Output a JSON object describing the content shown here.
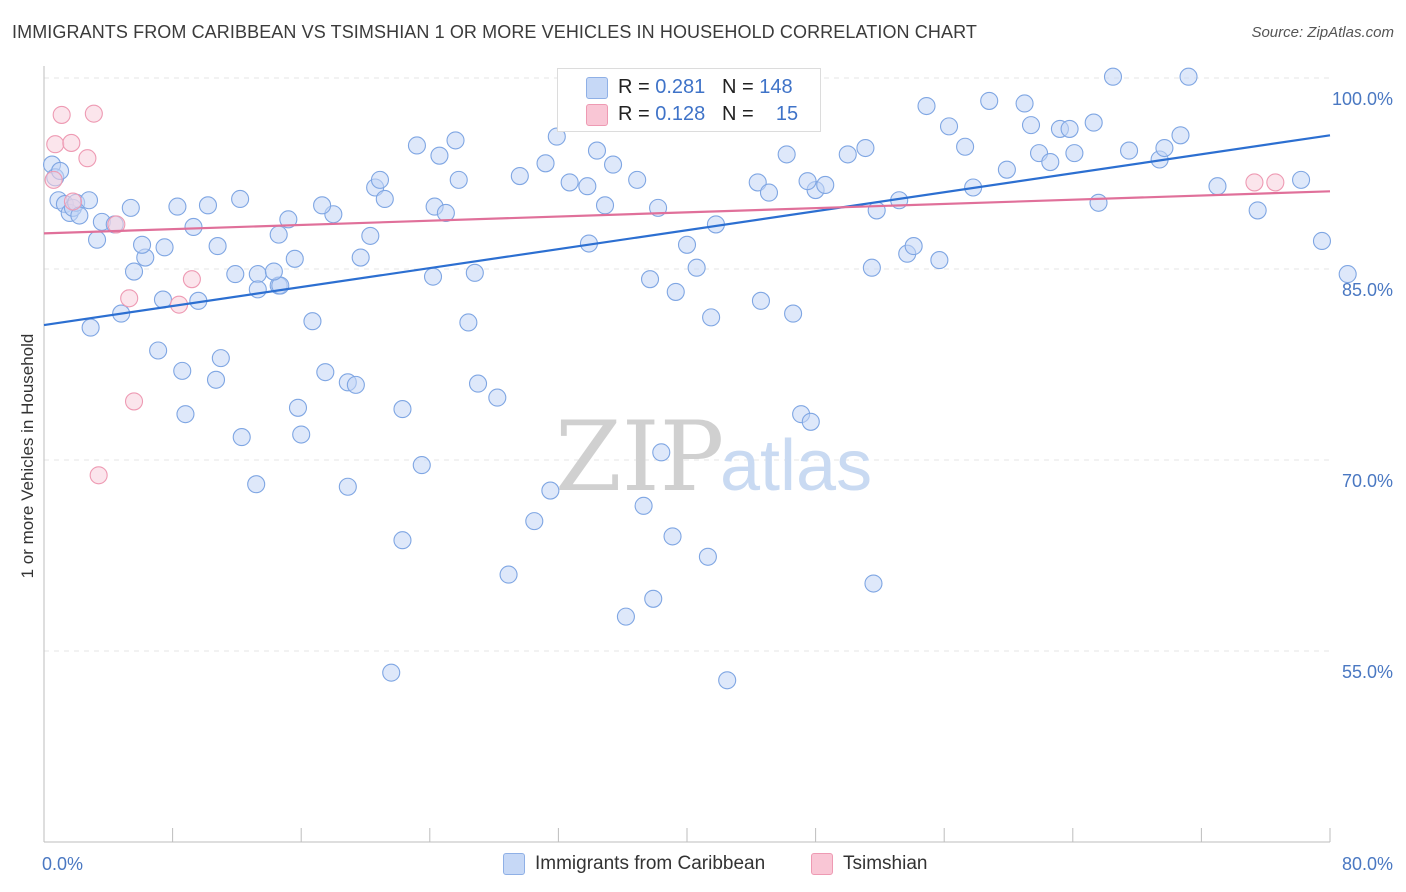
{
  "title": "IMMIGRANTS FROM CARIBBEAN VS TSIMSHIAN 1 OR MORE VEHICLES IN HOUSEHOLD CORRELATION CHART",
  "source": "Source: ZipAtlas.com",
  "watermark": {
    "zip": "ZIP",
    "atlas": "atlas"
  },
  "legend": {
    "r_label": "R =",
    "n_label": "N =",
    "rows": [
      {
        "r": "0.281",
        "n": "148",
        "color": "#a8c4f0"
      },
      {
        "r": "0.128",
        "n": "15",
        "color": "#f6b8cb"
      }
    ]
  },
  "bottom_legend": [
    {
      "label": "Immigrants from Caribbean",
      "color": "#b9d0f3"
    },
    {
      "label": "Tsimshian",
      "color": "#f8c8d6"
    }
  ],
  "chart_data": {
    "type": "scatter",
    "title": "IMMIGRANTS FROM CARIBBEAN VS TSIMSHIAN 1 OR MORE VEHICLES IN HOUSEHOLD CORRELATION CHART",
    "xlabel": "",
    "ylabel": "1 or more Vehicles in Household",
    "xlim": [
      0,
      80
    ],
    "ylim": [
      40,
      102
    ],
    "x_ticks": [
      0,
      80
    ],
    "x_tick_labels": [
      "0.0%",
      "80.0%"
    ],
    "y_ticks": [
      55,
      70,
      85,
      100
    ],
    "y_tick_labels": [
      "55.0%",
      "70.0%",
      "85.0%",
      "100.0%"
    ],
    "grid": true,
    "legend_position": "top-center",
    "series": [
      {
        "name": "Immigrants from Caribbean",
        "color": "#7fa6e3",
        "fill": "#c3d6f5",
        "trend": {
          "x": [
            0,
            80
          ],
          "y": [
            80.6,
            95.5
          ],
          "color": "#2c6fd1"
        },
        "points": [
          [
            0.5,
            93.2
          ],
          [
            0.7,
            92.2
          ],
          [
            0.9,
            90.4
          ],
          [
            1.0,
            92.7
          ],
          [
            1.3,
            90.1
          ],
          [
            1.6,
            89.4
          ],
          [
            1.8,
            89.8
          ],
          [
            2.0,
            90.2
          ],
          [
            2.2,
            89.2
          ],
          [
            2.8,
            90.4
          ],
          [
            3.6,
            88.7
          ],
          [
            5.4,
            89.8
          ],
          [
            8.3,
            89.9
          ],
          [
            10.2,
            90.0
          ],
          [
            12.2,
            90.5
          ],
          [
            2.9,
            80.4
          ],
          [
            4.8,
            81.5
          ],
          [
            5.6,
            84.8
          ],
          [
            6.3,
            85.9
          ],
          [
            7.4,
            82.6
          ],
          [
            3.3,
            87.3
          ],
          [
            4.4,
            88.5
          ],
          [
            6.1,
            86.9
          ],
          [
            7.5,
            86.7
          ],
          [
            9.3,
            88.3
          ],
          [
            10.8,
            86.8
          ],
          [
            11.9,
            84.6
          ],
          [
            13.3,
            84.6
          ],
          [
            14.6,
            87.7
          ],
          [
            15.2,
            88.9
          ],
          [
            9.6,
            82.5
          ],
          [
            11.0,
            78.0
          ],
          [
            10.7,
            76.3
          ],
          [
            8.8,
            73.6
          ],
          [
            7.1,
            78.6
          ],
          [
            8.6,
            77.0
          ],
          [
            12.3,
            71.8
          ],
          [
            13.2,
            68.1
          ],
          [
            14.6,
            83.7
          ],
          [
            14.7,
            83.7
          ],
          [
            13.3,
            83.4
          ],
          [
            14.3,
            84.8
          ],
          [
            15.6,
            85.8
          ],
          [
            16.0,
            72.0
          ],
          [
            16.7,
            80.9
          ],
          [
            15.8,
            74.1
          ],
          [
            17.5,
            76.9
          ],
          [
            18.0,
            89.3
          ],
          [
            18.9,
            67.9
          ],
          [
            17.3,
            90.0
          ],
          [
            18.9,
            76.1
          ],
          [
            19.4,
            75.9
          ],
          [
            19.7,
            85.9
          ],
          [
            20.3,
            87.6
          ],
          [
            20.6,
            91.4
          ],
          [
            20.9,
            92.0
          ],
          [
            21.2,
            90.5
          ],
          [
            22.3,
            63.7
          ],
          [
            21.6,
            53.3
          ],
          [
            22.3,
            74.0
          ],
          [
            23.2,
            94.7
          ],
          [
            23.5,
            69.6
          ],
          [
            24.3,
            89.9
          ],
          [
            24.6,
            93.9
          ],
          [
            24.2,
            84.4
          ],
          [
            25.0,
            89.4
          ],
          [
            25.8,
            92.0
          ],
          [
            25.6,
            95.1
          ],
          [
            26.4,
            80.8
          ],
          [
            26.8,
            84.7
          ],
          [
            27.0,
            76.0
          ],
          [
            28.2,
            74.9
          ],
          [
            28.9,
            61.0
          ],
          [
            29.6,
            92.3
          ],
          [
            30.5,
            65.2
          ],
          [
            31.2,
            93.3
          ],
          [
            31.5,
            67.6
          ],
          [
            31.9,
            95.4
          ],
          [
            32.7,
            91.8
          ],
          [
            33.1,
            99.0
          ],
          [
            33.8,
            91.5
          ],
          [
            33.9,
            87.0
          ],
          [
            34.4,
            94.3
          ],
          [
            34.9,
            90.0
          ],
          [
            35.4,
            93.2
          ],
          [
            36.2,
            57.7
          ],
          [
            36.9,
            92.0
          ],
          [
            37.7,
            84.2
          ],
          [
            38.4,
            70.6
          ],
          [
            37.3,
            66.4
          ],
          [
            37.9,
            59.1
          ],
          [
            39.1,
            64.0
          ],
          [
            38.2,
            89.8
          ],
          [
            39.3,
            83.2
          ],
          [
            40.0,
            86.9
          ],
          [
            40.6,
            85.1
          ],
          [
            41.3,
            62.4
          ],
          [
            41.8,
            88.5
          ],
          [
            41.5,
            81.2
          ],
          [
            42.5,
            52.7
          ],
          [
            43.8,
            96.5
          ],
          [
            44.4,
            91.8
          ],
          [
            44.6,
            82.5
          ],
          [
            45.1,
            91.0
          ],
          [
            46.2,
            94.0
          ],
          [
            47.1,
            73.6
          ],
          [
            46.6,
            81.5
          ],
          [
            47.7,
            73.0
          ],
          [
            48.0,
            91.2
          ],
          [
            47.5,
            91.9
          ],
          [
            48.6,
            91.6
          ],
          [
            50.0,
            94.0
          ],
          [
            51.1,
            94.5
          ],
          [
            51.5,
            85.1
          ],
          [
            51.8,
            89.6
          ],
          [
            51.6,
            60.3
          ],
          [
            53.2,
            90.4
          ],
          [
            53.7,
            86.2
          ],
          [
            54.1,
            86.8
          ],
          [
            54.9,
            97.8
          ],
          [
            55.7,
            85.7
          ],
          [
            56.3,
            96.2
          ],
          [
            57.3,
            94.6
          ],
          [
            57.8,
            91.4
          ],
          [
            58.8,
            98.2
          ],
          [
            59.9,
            92.8
          ],
          [
            61.0,
            98.0
          ],
          [
            61.4,
            96.3
          ],
          [
            61.9,
            94.1
          ],
          [
            62.6,
            93.4
          ],
          [
            63.2,
            96.0
          ],
          [
            63.8,
            96.0
          ],
          [
            64.1,
            94.1
          ],
          [
            65.3,
            96.5
          ],
          [
            65.6,
            90.2
          ],
          [
            66.5,
            100.1
          ],
          [
            67.5,
            94.3
          ],
          [
            69.4,
            93.6
          ],
          [
            69.7,
            94.5
          ],
          [
            70.7,
            95.5
          ],
          [
            71.2,
            100.1
          ],
          [
            73.0,
            91.5
          ],
          [
            75.5,
            89.6
          ],
          [
            78.2,
            92.0
          ],
          [
            79.5,
            87.2
          ],
          [
            81.1,
            84.6
          ]
        ]
      },
      {
        "name": "Tsimshian",
        "color": "#ee9ab3",
        "fill": "#f8d0dc",
        "trend": {
          "x": [
            0,
            80
          ],
          "y": [
            87.8,
            91.1
          ],
          "color": "#e0709a"
        },
        "points": [
          [
            0.6,
            92.0
          ],
          [
            0.7,
            94.8
          ],
          [
            1.1,
            97.1
          ],
          [
            1.7,
            94.9
          ],
          [
            1.8,
            90.3
          ],
          [
            2.7,
            93.7
          ],
          [
            3.1,
            97.2
          ],
          [
            4.5,
            88.5
          ],
          [
            5.3,
            82.7
          ],
          [
            5.6,
            74.6
          ],
          [
            8.4,
            82.2
          ],
          [
            9.2,
            84.2
          ],
          [
            3.4,
            68.8
          ],
          [
            75.3,
            91.8
          ],
          [
            76.6,
            91.8
          ]
        ]
      }
    ]
  }
}
